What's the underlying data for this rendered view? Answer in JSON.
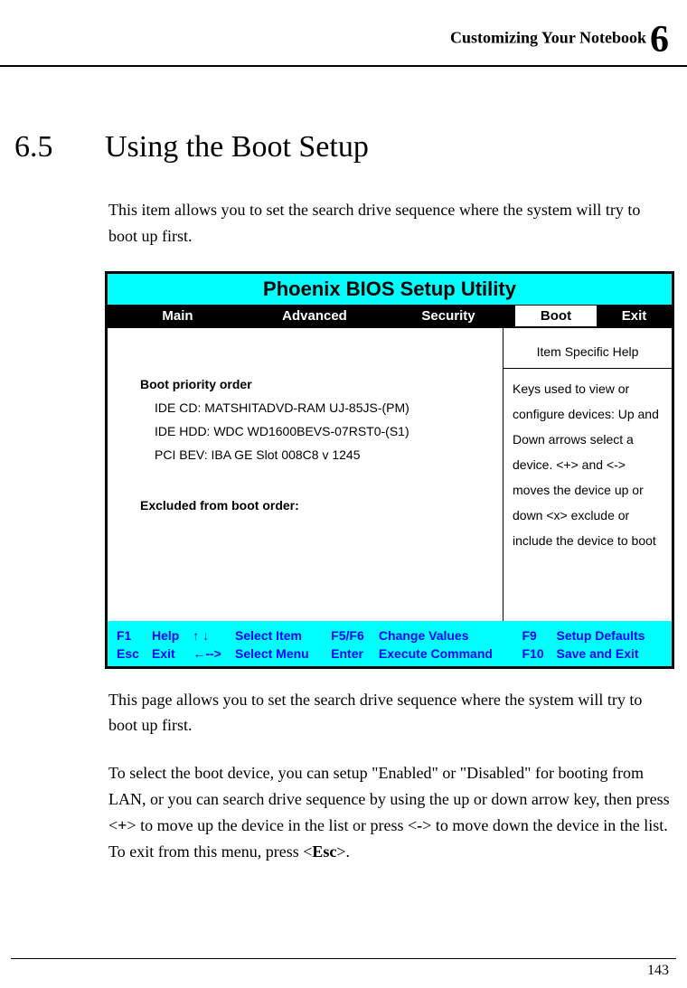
{
  "header": {
    "title": "Customizing Your Notebook",
    "chapter_num": "6"
  },
  "section": {
    "num": "6.5",
    "title": "Using the Boot Setup",
    "intro": "This item allows you to set the search drive sequence where the system will try to boot up first."
  },
  "bios": {
    "title_text": "Phoenix BIOS Setup Utility",
    "title_bg": "#00ffff",
    "row_bg": "#000000",
    "active_bg": "#ffffff",
    "tabs": {
      "main": "Main",
      "advanced": "Advanced",
      "security": "Security",
      "boot": "Boot",
      "exit": "Exit"
    },
    "left": {
      "heading1": "Boot priority order",
      "item1": "IDE CD: MATSHITADVD-RAM UJ-85JS-(PM)",
      "item2": "IDE HDD: WDC WD1600BEVS-07RST0-(S1)",
      "item3": "PCI BEV: IBA GE Slot 008C8  v 1245",
      "heading2": "Excluded from boot order:"
    },
    "help": {
      "title": "Item Specific Help",
      "body": "Keys used to view or configure devices: Up and Down arrows select a device. <+> and <-> moves the device up or down <x> exclude or include the device to boot"
    },
    "footer": {
      "color": "#0000ff",
      "bg": "#00ffff",
      "k1": "F1",
      "a1": "Help",
      "k2": "↑ ↓",
      "a2": "Select Item",
      "k3": "F5/F6",
      "a3": "Change Values",
      "k4": "F9",
      "a4": "Setup Defaults",
      "k5": "Esc",
      "a5": "Exit",
      "k6": "←-->",
      "a6": "Select Menu",
      "k7": "Enter",
      "a7": "Execute Command",
      "k8": "F10",
      "a8": "Save and Exit"
    }
  },
  "after": {
    "p1": "This page allows you to set the search drive sequence where the system will try to boot up first.",
    "p2": "To select the boot device, you can setup \"Enabled\" or \"Disabled\" for booting from LAN, or you can search drive sequence by using the up or down arrow key, then press <+> to move up the device in the list or press <-> to move down the device in the list. To exit from this menu, press <Esc>."
  },
  "page_num": "143"
}
